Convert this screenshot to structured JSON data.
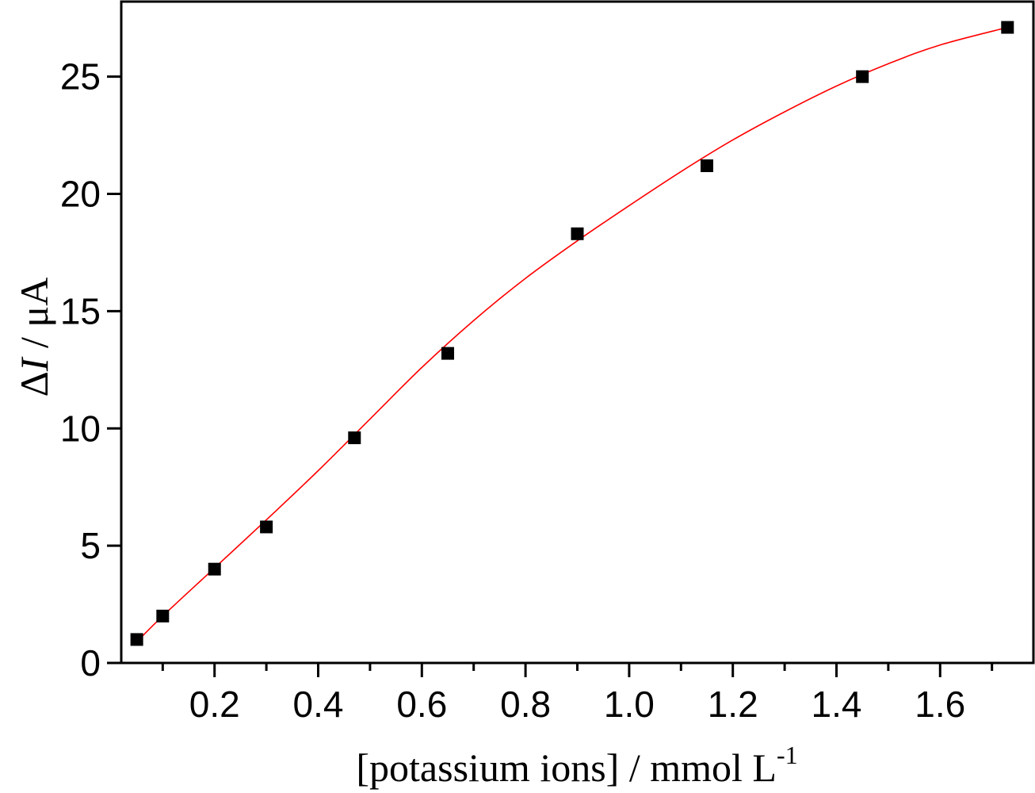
{
  "chart_data": {
    "type": "scatter",
    "title": "",
    "xlabel_main": "[potassium ions] / mmol L",
    "xlabel_sup": "-1",
    "ylabel_delta": "Δ",
    "ylabel_var": "I",
    "ylabel_unit": " / μA",
    "xlim": [
      0.02,
      1.78
    ],
    "ylim": [
      0,
      28.2
    ],
    "x_ticks": [
      0.2,
      0.4,
      0.6,
      0.8,
      1.0,
      1.2,
      1.4,
      1.6
    ],
    "x_tick_labels": [
      "0.2",
      "0.4",
      "0.6",
      "0.8",
      "1.0",
      "1.2",
      "1.4",
      "1.6"
    ],
    "x_minor_ticks": [
      0.1,
      0.3,
      0.5,
      0.7,
      0.9,
      1.1,
      1.3,
      1.5,
      1.7
    ],
    "y_ticks": [
      0,
      5,
      10,
      15,
      20,
      25
    ],
    "y_tick_labels": [
      "0",
      "5",
      "10",
      "15",
      "20",
      "25"
    ],
    "grid": false,
    "series": [
      {
        "marker": "square",
        "color": "#000000",
        "x": [
          0.05,
          0.1,
          0.2,
          0.3,
          0.47,
          0.65,
          0.9,
          1.15,
          1.45,
          1.73
        ],
        "y": [
          1.0,
          2.0,
          4.0,
          5.8,
          9.6,
          13.2,
          18.3,
          21.2,
          25.0,
          27.1
        ]
      },
      {
        "marker": "line",
        "color": "#ff0000",
        "x": [
          0.05,
          0.1,
          0.2,
          0.3,
          0.4,
          0.5,
          0.6,
          0.7,
          0.8,
          0.9,
          1.0,
          1.1,
          1.2,
          1.3,
          1.4,
          1.5,
          1.6,
          1.73
        ],
        "y": [
          0.9,
          2.0,
          4.05,
          6.1,
          8.2,
          10.4,
          12.6,
          14.6,
          16.4,
          18.0,
          19.5,
          20.95,
          22.3,
          23.5,
          24.6,
          25.55,
          26.35,
          27.1
        ]
      }
    ]
  }
}
